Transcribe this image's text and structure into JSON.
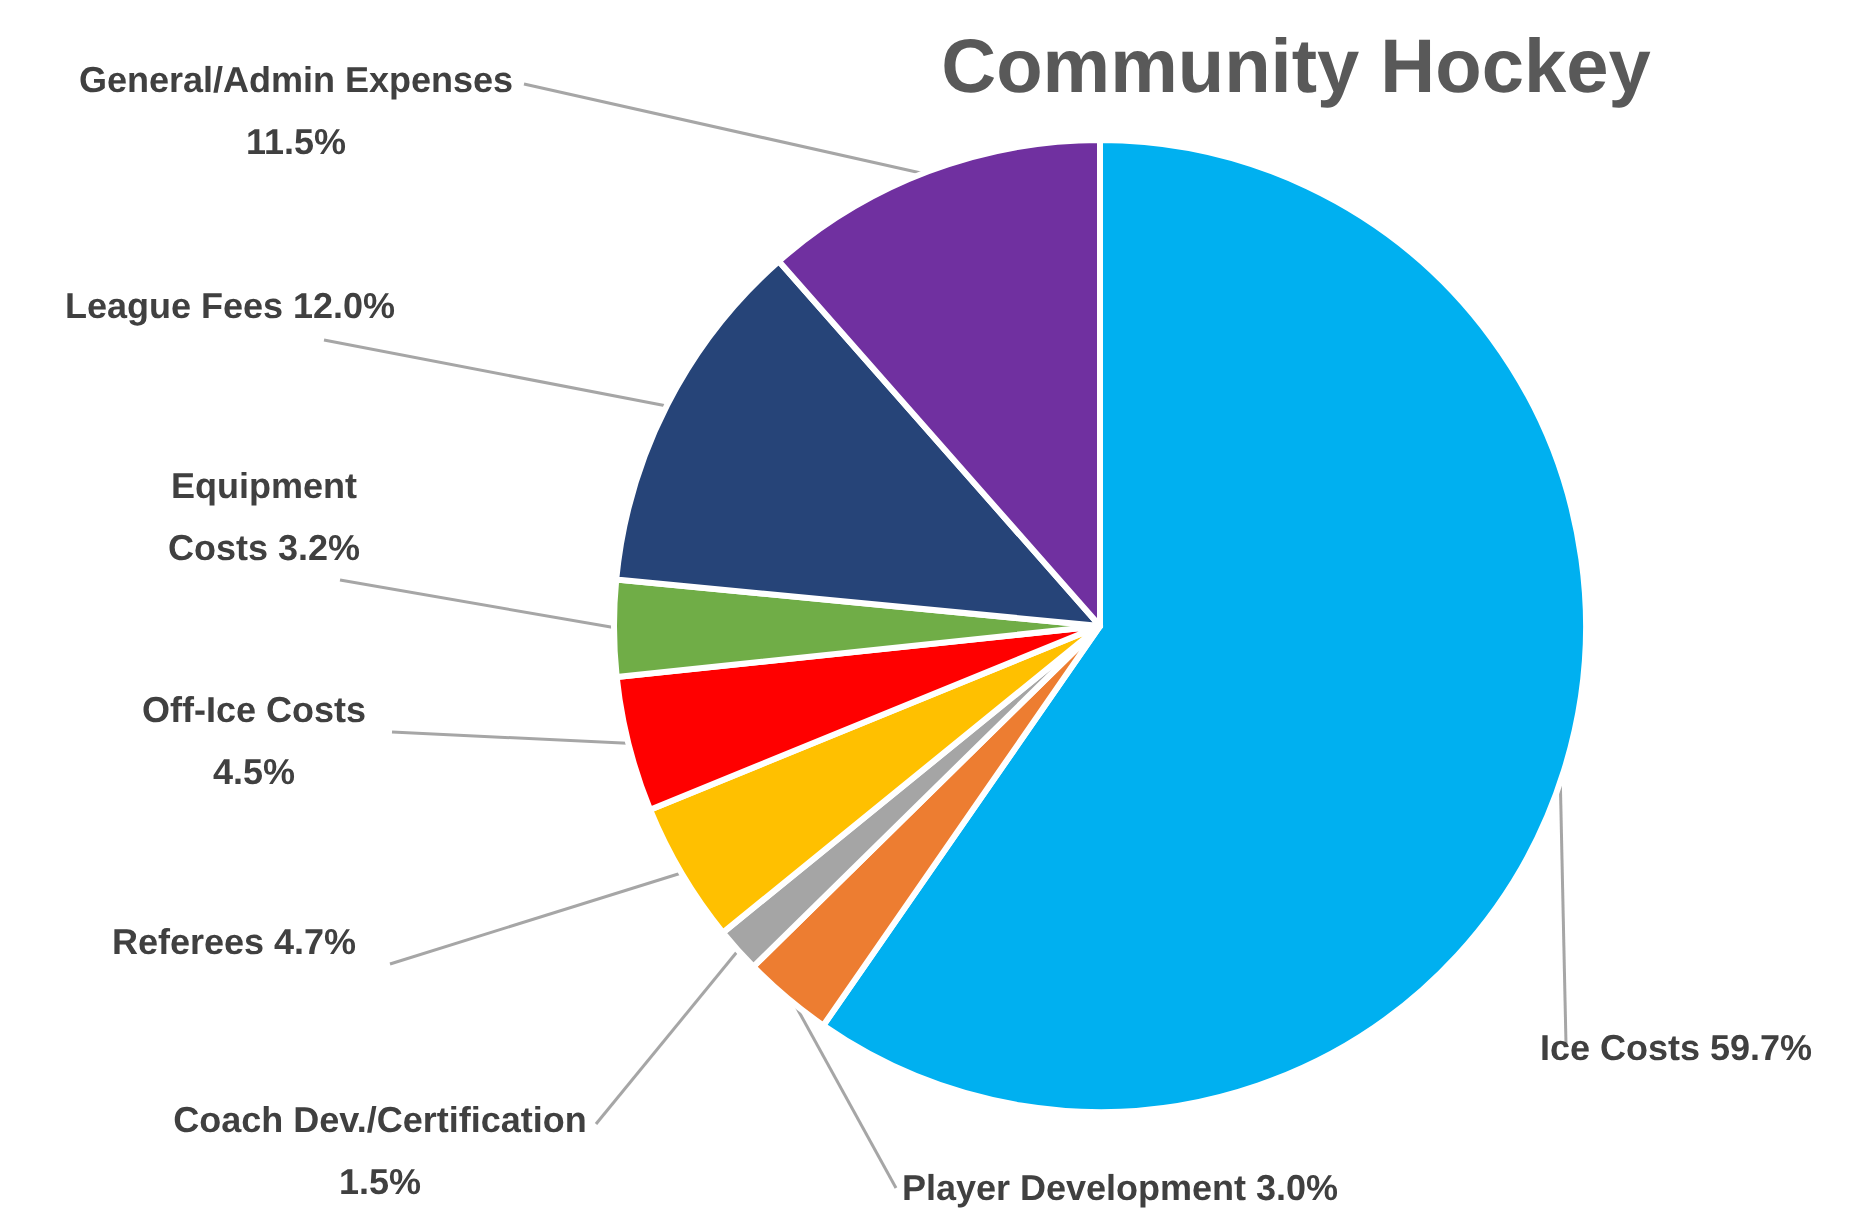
{
  "chart_data": {
    "type": "pie",
    "title": "Community Hockey",
    "categories": [
      "Ice Costs",
      "Player Development",
      "Coach Dev./Certification",
      "Referees",
      "Off-Ice Costs",
      "Equipment Costs",
      "League Fees",
      "General/Admin Expenses"
    ],
    "values": [
      59.7,
      3.0,
      1.5,
      4.7,
      4.5,
      3.2,
      12.0,
      11.5
    ],
    "value_labels": [
      "59.7%",
      "3.0%",
      "1.5%",
      "4.7%",
      "4.5%",
      "3.2%",
      "12.0%",
      "11.5%"
    ],
    "colors": [
      "#00b0f0",
      "#ed7d31",
      "#a5a5a5",
      "#ffc000",
      "#ff0000",
      "#70ad47",
      "#264478",
      "#7030a0"
    ]
  }
}
